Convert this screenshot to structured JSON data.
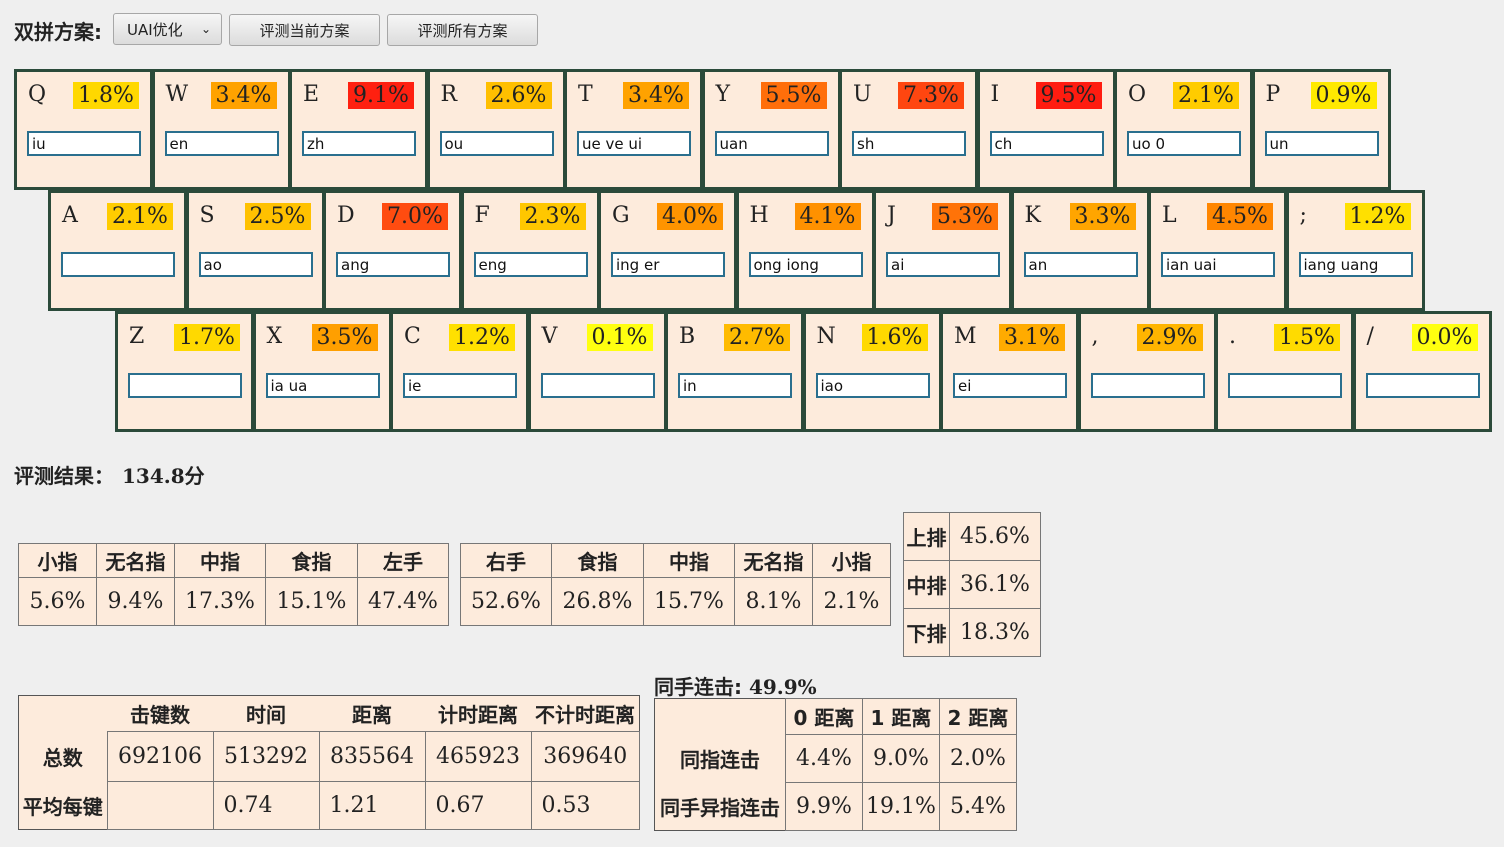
{
  "toolbar": {
    "title": "双拼方案:",
    "scheme_value": "UAI优化",
    "eval_current_label": "评测当前方案",
    "eval_all_label": "评测所有方案"
  },
  "keyboard": {
    "rows": [
      [
        {
          "key": "Q",
          "pct": "1.8%",
          "color": "#ffd800",
          "value": "iu"
        },
        {
          "key": "W",
          "pct": "3.4%",
          "color": "#ffa200",
          "value": "en"
        },
        {
          "key": "E",
          "pct": "9.1%",
          "color": "#ff2010",
          "value": "zh"
        },
        {
          "key": "R",
          "pct": "2.6%",
          "color": "#ffbf00",
          "value": "ou"
        },
        {
          "key": "T",
          "pct": "3.4%",
          "color": "#ffa200",
          "value": "ue ve ui"
        },
        {
          "key": "Y",
          "pct": "5.5%",
          "color": "#ff6e0a",
          "value": "uan"
        },
        {
          "key": "U",
          "pct": "7.3%",
          "color": "#ff4610",
          "value": "sh"
        },
        {
          "key": "I",
          "pct": "9.5%",
          "color": "#ff1c10",
          "value": "ch"
        },
        {
          "key": "O",
          "pct": "2.1%",
          "color": "#ffcc00",
          "value": "uo 0"
        },
        {
          "key": "P",
          "pct": "0.9%",
          "color": "#ffe900",
          "value": "un"
        }
      ],
      [
        {
          "key": "A",
          "pct": "2.1%",
          "color": "#ffcc00",
          "value": ""
        },
        {
          "key": "S",
          "pct": "2.5%",
          "color": "#ffc100",
          "value": "ao"
        },
        {
          "key": "D",
          "pct": "7.0%",
          "color": "#ff4c10",
          "value": "ang"
        },
        {
          "key": "F",
          "pct": "2.3%",
          "color": "#ffc700",
          "value": "eng"
        },
        {
          "key": "G",
          "pct": "4.0%",
          "color": "#ff9400",
          "value": "ing er"
        },
        {
          "key": "H",
          "pct": "4.1%",
          "color": "#ff9100",
          "value": "ong iong"
        },
        {
          "key": "J",
          "pct": "5.3%",
          "color": "#ff7308",
          "value": "ai"
        },
        {
          "key": "K",
          "pct": "3.3%",
          "color": "#ffa500",
          "value": "an"
        },
        {
          "key": "L",
          "pct": "4.5%",
          "color": "#ff8600",
          "value": "ian uai"
        },
        {
          "key": ";",
          "pct": "1.2%",
          "color": "#ffe000",
          "value": "iang uang"
        }
      ],
      [
        {
          "key": "Z",
          "pct": "1.7%",
          "color": "#ffd900",
          "value": ""
        },
        {
          "key": "X",
          "pct": "3.5%",
          "color": "#ff9f00",
          "value": "ia ua"
        },
        {
          "key": "C",
          "pct": "1.2%",
          "color": "#ffe000",
          "value": "ie"
        },
        {
          "key": "V",
          "pct": "0.1%",
          "color": "#ffff10",
          "value": ""
        },
        {
          "key": "B",
          "pct": "2.7%",
          "color": "#ffbb00",
          "value": "in"
        },
        {
          "key": "N",
          "pct": "1.6%",
          "color": "#ffd900",
          "value": "iao"
        },
        {
          "key": "M",
          "pct": "3.1%",
          "color": "#ffab00",
          "value": "ei"
        },
        {
          "key": ",",
          "pct": "2.9%",
          "color": "#ffb500",
          "value": ""
        },
        {
          "key": ".",
          "pct": "1.5%",
          "color": "#ffdb00",
          "value": ""
        },
        {
          "key": "/",
          "pct": "0.0%",
          "color": "#ffff10",
          "value": ""
        }
      ]
    ]
  },
  "result": {
    "label": "评测结果：",
    "score": "134.8分"
  },
  "left_hand": {
    "headers": [
      "小指",
      "无名指",
      "中指",
      "食指",
      "左手"
    ],
    "values": [
      "5.6%",
      "9.4%",
      "17.3%",
      "15.1%",
      "47.4%"
    ]
  },
  "right_hand": {
    "headers": [
      "右手",
      "食指",
      "中指",
      "无名指",
      "小指"
    ],
    "values": [
      "52.6%",
      "26.8%",
      "15.7%",
      "8.1%",
      "2.1%"
    ]
  },
  "rows_stats": [
    {
      "label": "上排",
      "value": "45.6%"
    },
    {
      "label": "中排",
      "value": "36.1%"
    },
    {
      "label": "下排",
      "value": "18.3%"
    }
  ],
  "totals": {
    "headers": [
      "击键数",
      "时间",
      "距离",
      "计时距离",
      "不计时距离"
    ],
    "rows": [
      {
        "label": "总数",
        "values": [
          "692106",
          "513292",
          "835564",
          "465923",
          "369640"
        ]
      },
      {
        "label": "平均每键",
        "values": [
          "",
          "0.74",
          "1.21",
          "0.67",
          "0.53"
        ]
      }
    ]
  },
  "same_hand": {
    "title": "同手连击:",
    "value": "49.9%",
    "headers": [
      "0 距离",
      "1 距离",
      "2 距离"
    ],
    "rows": [
      {
        "label": "同指连击",
        "values": [
          "4.4%",
          "9.0%",
          "2.0%"
        ]
      },
      {
        "label": "同手异指连击",
        "values": [
          "9.9%",
          "19.1%",
          "5.4%"
        ]
      }
    ]
  }
}
